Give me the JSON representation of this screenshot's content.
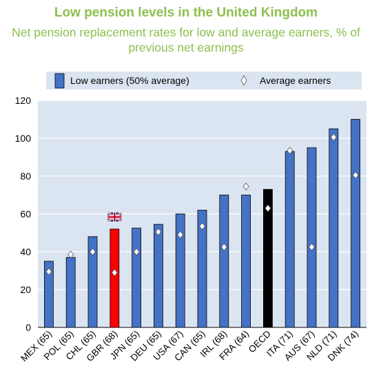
{
  "title": "Low pension levels in the United Kingdom",
  "subtitle": "Net pension replacement rates for low and average earners, % of previous net earnings",
  "colors": {
    "bar": "#4472c4",
    "highlight": "#ff0000",
    "oecd": "#000000",
    "title": "#8cbf4e",
    "plot_bg": "#dbe4f1",
    "grid": "#ffffff"
  },
  "chart_data": {
    "type": "bar",
    "categories": [
      "MEX (65)",
      "POL (65)",
      "CHL (65)",
      "GBR (68)",
      "JPN (65)",
      "DEU (65)",
      "USA (67)",
      "CAN (65)",
      "IRL (68)",
      "FRA (64)",
      "OECD",
      "ITA (71)",
      "AUS (67)",
      "NLD (71)",
      "DNK (74)"
    ],
    "series": [
      {
        "name": "Low earners (50% average)",
        "type": "bar",
        "values": [
          35,
          37,
          48,
          52,
          52.5,
          54.5,
          60,
          62,
          70,
          70,
          73,
          93,
          95,
          105,
          110
        ]
      },
      {
        "name": "Average earners",
        "type": "marker",
        "values": [
          29.5,
          38.5,
          40,
          29,
          40,
          50.5,
          49,
          53.5,
          42.5,
          74.5,
          63,
          93.5,
          42.5,
          100.5,
          80.5
        ]
      }
    ],
    "highlight": {
      "GBR (68)": "highlight",
      "OECD": "oecd"
    },
    "flag_on": "GBR (68)",
    "flag_icon": "union-jack-flag-icon",
    "ylim": [
      0,
      120
    ],
    "yticks": [
      0,
      20,
      40,
      60,
      80,
      100,
      120
    ],
    "legend_position": "top",
    "grid": true
  }
}
